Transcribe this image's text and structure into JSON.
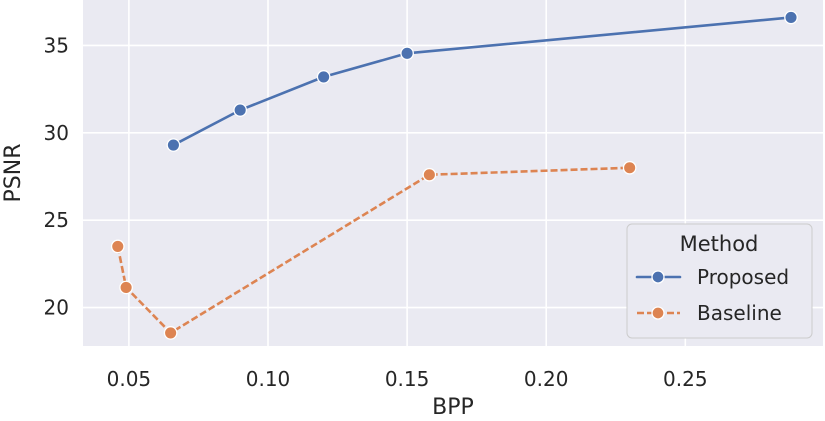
{
  "chart_data": {
    "type": "line",
    "title": "",
    "xlabel": "BPP",
    "ylabel": "PSNR",
    "xlim": [
      0.0335,
      0.2995
    ],
    "ylim": [
      17.8,
      37.6
    ],
    "xticks": [
      0.05,
      0.1,
      0.15,
      0.2,
      0.25
    ],
    "xtick_labels": [
      "0.05",
      "0.10",
      "0.15",
      "0.20",
      "0.25"
    ],
    "yticks": [
      20,
      25,
      30,
      35
    ],
    "ytick_labels": [
      "20",
      "25",
      "30",
      "35"
    ],
    "grid": true,
    "background": "#eaeaf2",
    "legend": {
      "title": "Method",
      "placement": "lower-right"
    },
    "series": [
      {
        "name": "Proposed",
        "color": "#4c72b0",
        "line_style": "solid",
        "marker": "circle",
        "x": [
          0.066,
          0.09,
          0.12,
          0.15,
          0.288
        ],
        "y": [
          29.3,
          31.3,
          33.2,
          34.55,
          36.6
        ]
      },
      {
        "name": "Baseline",
        "color": "#dd8452",
        "line_style": "dashed",
        "marker": "circle",
        "x": [
          0.046,
          0.049,
          0.065,
          0.158,
          0.23
        ],
        "y": [
          23.5,
          21.15,
          18.55,
          27.6,
          28.0
        ]
      }
    ]
  }
}
